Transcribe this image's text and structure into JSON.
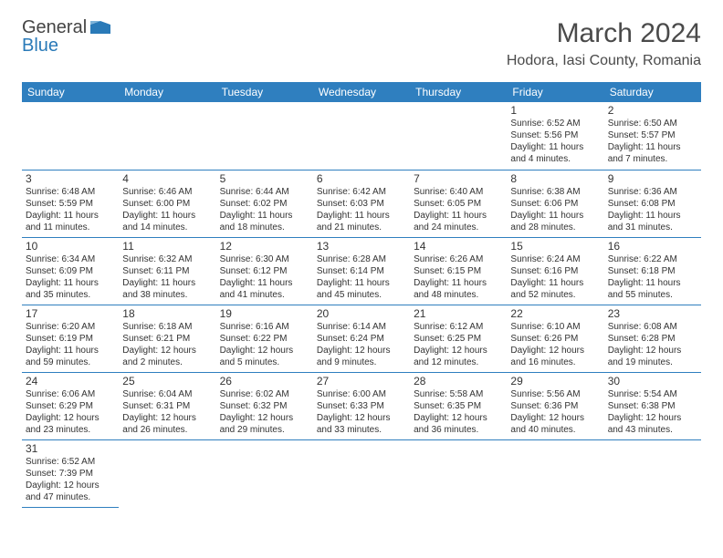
{
  "logo": {
    "text1": "General",
    "text2": "Blue"
  },
  "title": "March 2024",
  "location": "Hodora, Iasi County, Romania",
  "colors": {
    "header_bg": "#2f7fbf",
    "header_fg": "#ffffff",
    "border": "#2f7fbf",
    "text": "#333333",
    "title_color": "#4a4a4a",
    "logo_blue": "#2a7ab8",
    "background": "#ffffff"
  },
  "typography": {
    "title_fontsize": 30,
    "location_fontsize": 16,
    "weekday_fontsize": 12,
    "daynum_fontsize": 12,
    "detail_fontsize": 10
  },
  "weekdays": [
    "Sunday",
    "Monday",
    "Tuesday",
    "Wednesday",
    "Thursday",
    "Friday",
    "Saturday"
  ],
  "labels": {
    "sunrise": "Sunrise:",
    "sunset": "Sunset:",
    "daylight": "Daylight:"
  },
  "grid": {
    "rows": 6,
    "cols": 7,
    "first_day_col": 5,
    "days": 31
  },
  "days": {
    "1": {
      "sunrise": "6:52 AM",
      "sunset": "5:56 PM",
      "daylight": "11 hours and 4 minutes."
    },
    "2": {
      "sunrise": "6:50 AM",
      "sunset": "5:57 PM",
      "daylight": "11 hours and 7 minutes."
    },
    "3": {
      "sunrise": "6:48 AM",
      "sunset": "5:59 PM",
      "daylight": "11 hours and 11 minutes."
    },
    "4": {
      "sunrise": "6:46 AM",
      "sunset": "6:00 PM",
      "daylight": "11 hours and 14 minutes."
    },
    "5": {
      "sunrise": "6:44 AM",
      "sunset": "6:02 PM",
      "daylight": "11 hours and 18 minutes."
    },
    "6": {
      "sunrise": "6:42 AM",
      "sunset": "6:03 PM",
      "daylight": "11 hours and 21 minutes."
    },
    "7": {
      "sunrise": "6:40 AM",
      "sunset": "6:05 PM",
      "daylight": "11 hours and 24 minutes."
    },
    "8": {
      "sunrise": "6:38 AM",
      "sunset": "6:06 PM",
      "daylight": "11 hours and 28 minutes."
    },
    "9": {
      "sunrise": "6:36 AM",
      "sunset": "6:08 PM",
      "daylight": "11 hours and 31 minutes."
    },
    "10": {
      "sunrise": "6:34 AM",
      "sunset": "6:09 PM",
      "daylight": "11 hours and 35 minutes."
    },
    "11": {
      "sunrise": "6:32 AM",
      "sunset": "6:11 PM",
      "daylight": "11 hours and 38 minutes."
    },
    "12": {
      "sunrise": "6:30 AM",
      "sunset": "6:12 PM",
      "daylight": "11 hours and 41 minutes."
    },
    "13": {
      "sunrise": "6:28 AM",
      "sunset": "6:14 PM",
      "daylight": "11 hours and 45 minutes."
    },
    "14": {
      "sunrise": "6:26 AM",
      "sunset": "6:15 PM",
      "daylight": "11 hours and 48 minutes."
    },
    "15": {
      "sunrise": "6:24 AM",
      "sunset": "6:16 PM",
      "daylight": "11 hours and 52 minutes."
    },
    "16": {
      "sunrise": "6:22 AM",
      "sunset": "6:18 PM",
      "daylight": "11 hours and 55 minutes."
    },
    "17": {
      "sunrise": "6:20 AM",
      "sunset": "6:19 PM",
      "daylight": "11 hours and 59 minutes."
    },
    "18": {
      "sunrise": "6:18 AM",
      "sunset": "6:21 PM",
      "daylight": "12 hours and 2 minutes."
    },
    "19": {
      "sunrise": "6:16 AM",
      "sunset": "6:22 PM",
      "daylight": "12 hours and 5 minutes."
    },
    "20": {
      "sunrise": "6:14 AM",
      "sunset": "6:24 PM",
      "daylight": "12 hours and 9 minutes."
    },
    "21": {
      "sunrise": "6:12 AM",
      "sunset": "6:25 PM",
      "daylight": "12 hours and 12 minutes."
    },
    "22": {
      "sunrise": "6:10 AM",
      "sunset": "6:26 PM",
      "daylight": "12 hours and 16 minutes."
    },
    "23": {
      "sunrise": "6:08 AM",
      "sunset": "6:28 PM",
      "daylight": "12 hours and 19 minutes."
    },
    "24": {
      "sunrise": "6:06 AM",
      "sunset": "6:29 PM",
      "daylight": "12 hours and 23 minutes."
    },
    "25": {
      "sunrise": "6:04 AM",
      "sunset": "6:31 PM",
      "daylight": "12 hours and 26 minutes."
    },
    "26": {
      "sunrise": "6:02 AM",
      "sunset": "6:32 PM",
      "daylight": "12 hours and 29 minutes."
    },
    "27": {
      "sunrise": "6:00 AM",
      "sunset": "6:33 PM",
      "daylight": "12 hours and 33 minutes."
    },
    "28": {
      "sunrise": "5:58 AM",
      "sunset": "6:35 PM",
      "daylight": "12 hours and 36 minutes."
    },
    "29": {
      "sunrise": "5:56 AM",
      "sunset": "6:36 PM",
      "daylight": "12 hours and 40 minutes."
    },
    "30": {
      "sunrise": "5:54 AM",
      "sunset": "6:38 PM",
      "daylight": "12 hours and 43 minutes."
    },
    "31": {
      "sunrise": "6:52 AM",
      "sunset": "7:39 PM",
      "daylight": "12 hours and 47 minutes."
    }
  }
}
